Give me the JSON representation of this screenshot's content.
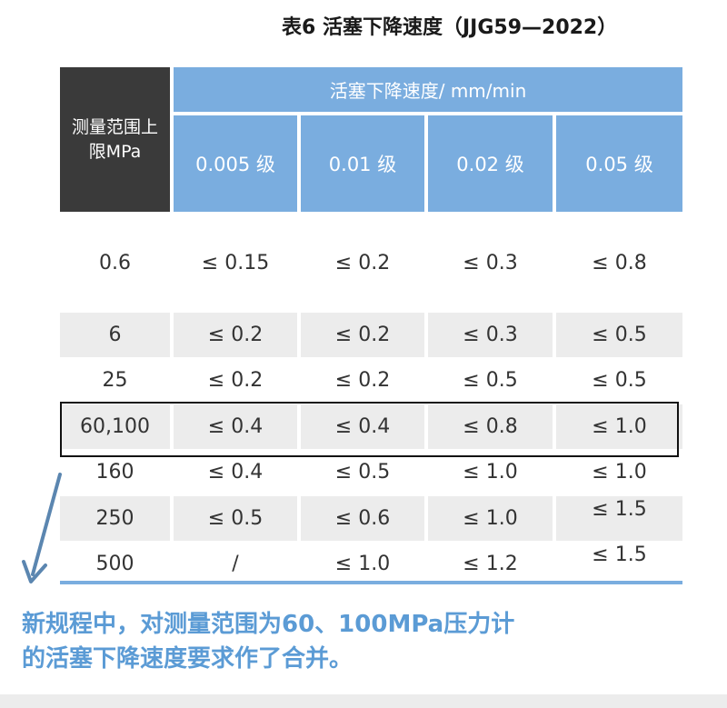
{
  "title": "表6  活塞下降速度（JJG59—2022）",
  "table": {
    "range_header": "测量范围上限MPa",
    "speed_header": "活塞下降速度/ mm/min",
    "grades": [
      "0.005 级",
      "0.01 级",
      "0.02 级",
      "0.05 级"
    ],
    "rows": [
      {
        "range": "0.6",
        "values": [
          "≤ 0.15",
          "≤ 0.2",
          "≤ 0.3",
          "≤ 0.8"
        ]
      },
      {
        "range": "6",
        "values": [
          "≤ 0.2",
          "≤ 0.2",
          "≤ 0.3",
          "≤ 0.5"
        ]
      },
      {
        "range": "25",
        "values": [
          "≤ 0.2",
          "≤ 0.2",
          "≤ 0.5",
          "≤ 0.5"
        ]
      },
      {
        "range": "60,100",
        "values": [
          "≤ 0.4",
          "≤ 0.4",
          "≤ 0.8",
          "≤ 1.0"
        ]
      },
      {
        "range": "160",
        "values": [
          "≤ 0.4",
          "≤ 0.5",
          "≤ 1.0",
          "≤ 1.0"
        ]
      },
      {
        "range": "250",
        "values": [
          "≤ 0.5",
          "≤ 0.6",
          "≤ 1.0",
          "≤ 1.5"
        ]
      },
      {
        "range": "500",
        "values": [
          "/",
          "≤ 1.0",
          "≤ 1.2",
          "≤ 1.5"
        ]
      }
    ]
  },
  "note": {
    "line1": "新规程中，对测量范围为60、100MPa压力计",
    "line2": "的活塞下降速度要求作了合并。"
  },
  "colors": {
    "header_blue": "#7aaddf",
    "header_dark": "#3a3a3a",
    "stripe": "#ececec",
    "note_text": "#5b9bd5",
    "arrow": "#5b86b0"
  }
}
